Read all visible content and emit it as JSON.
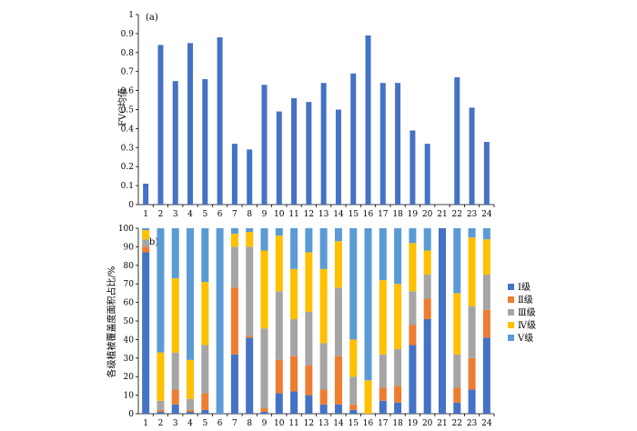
{
  "colors": {
    "bar_a": "#4472C4",
    "level_1": "#4472C4",
    "level_2": "#ED7D31",
    "level_3": "#A5A5A5",
    "level_4": "#FFC000",
    "level_5": "#5B9BD5"
  },
  "chart_data": [
    {
      "type": "bar",
      "panel_label": "(a)",
      "ylabel": "FVC均值",
      "ylim": [
        0,
        1
      ],
      "yticks": [
        "0",
        "0.1",
        "0.2",
        "0.3",
        "0.4",
        "0.5",
        "0.6",
        "0.7",
        "0.8",
        "0.9",
        "1"
      ],
      "categories": [
        "1",
        "2",
        "3",
        "4",
        "5",
        "6",
        "7",
        "8",
        "9",
        "10",
        "11",
        "12",
        "13",
        "14",
        "15",
        "16",
        "17",
        "18",
        "19",
        "20",
        "21",
        "22",
        "23",
        "24"
      ],
      "values": [
        0.11,
        0.84,
        0.65,
        0.85,
        0.66,
        0.88,
        0.32,
        0.29,
        0.63,
        0.49,
        0.56,
        0.54,
        0.64,
        0.5,
        0.69,
        0.89,
        0.64,
        0.64,
        0.39,
        0.32,
        0,
        0.67,
        0.51,
        0.33
      ],
      "grid": false
    },
    {
      "type": "bar",
      "stacked": true,
      "panel_label": "(b)",
      "ylabel": "各级植被覆盖度面积占比/%",
      "ylim": [
        0,
        100
      ],
      "yticks": [
        "0",
        "10",
        "20",
        "30",
        "40",
        "50",
        "60",
        "70",
        "80",
        "90",
        "100"
      ],
      "categories": [
        "1",
        "2",
        "3",
        "4",
        "5",
        "6",
        "7",
        "8",
        "9",
        "10",
        "11",
        "12",
        "13",
        "14",
        "15",
        "16",
        "17",
        "18",
        "19",
        "20",
        "21",
        "22",
        "23",
        "24"
      ],
      "legend_position": "right",
      "series": [
        {
          "name": "Ⅰ级",
          "values": [
            87,
            1,
            5,
            1,
            2,
            0,
            32,
            41,
            1,
            11,
            12,
            10,
            5,
            5,
            2,
            0,
            7,
            6,
            37,
            51,
            100,
            6,
            13,
            41
          ]
        },
        {
          "name": "Ⅱ级",
          "values": [
            3,
            1,
            8,
            1,
            9,
            0,
            36,
            1,
            2,
            18,
            19,
            16,
            8,
            26,
            3,
            0,
            7,
            9,
            11,
            11,
            0,
            8,
            17,
            15
          ]
        },
        {
          "name": "Ⅲ级",
          "values": [
            4,
            5,
            20,
            6,
            26,
            0,
            22,
            48,
            43,
            37,
            20,
            29,
            25,
            37,
            15,
            0,
            18,
            20,
            18,
            13,
            0,
            18,
            28,
            19
          ]
        },
        {
          "name": "Ⅳ级",
          "values": [
            5,
            26,
            40,
            21,
            34,
            0,
            7,
            8,
            42,
            30,
            27,
            32,
            40,
            25,
            20,
            18,
            40,
            35,
            26,
            13,
            0,
            33,
            37,
            19
          ]
        },
        {
          "name": "Ⅴ级",
          "values": [
            1,
            67,
            27,
            71,
            29,
            100,
            3,
            2,
            12,
            4,
            22,
            13,
            22,
            7,
            60,
            82,
            28,
            30,
            8,
            12,
            0,
            35,
            5,
            6
          ]
        }
      ],
      "grid": false
    }
  ]
}
